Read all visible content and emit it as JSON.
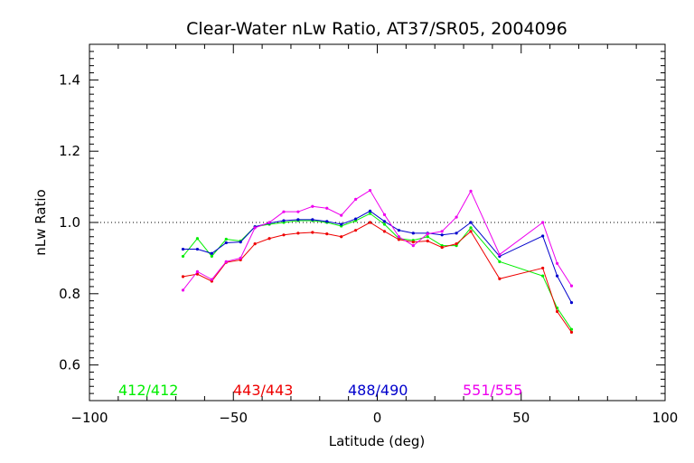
{
  "chart_data": {
    "type": "line",
    "title": "Clear-Water nLw Ratio, AT37/SR05, 2004096",
    "xlabel": "Latitude (deg)",
    "ylabel": "nLw Ratio",
    "xlim": [
      -100,
      100
    ],
    "ylim": [
      0.5,
      1.5
    ],
    "xticks": [
      -100,
      -50,
      0,
      50,
      100
    ],
    "xtick_labels": [
      "−100",
      "−50",
      "0",
      "50",
      "100"
    ],
    "yticks": [
      0.6,
      0.8,
      1.0,
      1.2,
      1.4
    ],
    "ytick_labels": [
      "0.6",
      "0.8",
      "1.0",
      "1.2",
      "1.4"
    ],
    "reference_line": {
      "y": 1.0,
      "style": "dotted"
    },
    "legend_placement": "bottom inside plot",
    "x": [
      -67.5,
      -62.5,
      -57.5,
      -52.5,
      -47.5,
      -42.5,
      -37.5,
      -32.5,
      -27.5,
      -22.5,
      -17.5,
      -12.5,
      -7.5,
      -2.5,
      2.5,
      7.5,
      12.5,
      17.5,
      22.5,
      27.5,
      32.5,
      42.5,
      57.5,
      62.5,
      67.5
    ],
    "series": [
      {
        "name": "412/412",
        "color": "#00ee00",
        "values": [
          0.905,
          0.955,
          0.905,
          0.953,
          0.948,
          0.988,
          0.995,
          1.0,
          1.005,
          1.005,
          1.0,
          0.99,
          1.005,
          1.025,
          0.995,
          0.955,
          0.95,
          0.96,
          0.935,
          0.935,
          0.985,
          0.89,
          0.85,
          0.76,
          0.7
        ]
      },
      {
        "name": "443/443",
        "color": "#ee0000",
        "values": [
          0.848,
          0.855,
          0.835,
          0.888,
          0.895,
          0.94,
          0.955,
          0.965,
          0.97,
          0.972,
          0.968,
          0.96,
          0.978,
          1.0,
          0.975,
          0.952,
          0.945,
          0.948,
          0.93,
          0.94,
          0.975,
          0.842,
          0.872,
          0.75,
          0.692
        ]
      },
      {
        "name": "488/490",
        "color": "#0000cc",
        "values": [
          0.925,
          0.925,
          0.913,
          0.943,
          0.945,
          0.988,
          0.998,
          1.005,
          1.008,
          1.008,
          1.003,
          0.995,
          1.01,
          1.032,
          1.003,
          0.978,
          0.97,
          0.97,
          0.965,
          0.97,
          1.0,
          0.905,
          0.962,
          0.85,
          0.775
        ]
      },
      {
        "name": "551/555",
        "color": "#ee00ee",
        "values": [
          0.81,
          0.862,
          0.84,
          0.89,
          0.9,
          0.985,
          1.0,
          1.03,
          1.03,
          1.045,
          1.04,
          1.02,
          1.065,
          1.09,
          1.022,
          0.96,
          0.935,
          0.968,
          0.975,
          1.015,
          1.088,
          0.91,
          1.0,
          0.885,
          0.822
        ]
      }
    ]
  }
}
